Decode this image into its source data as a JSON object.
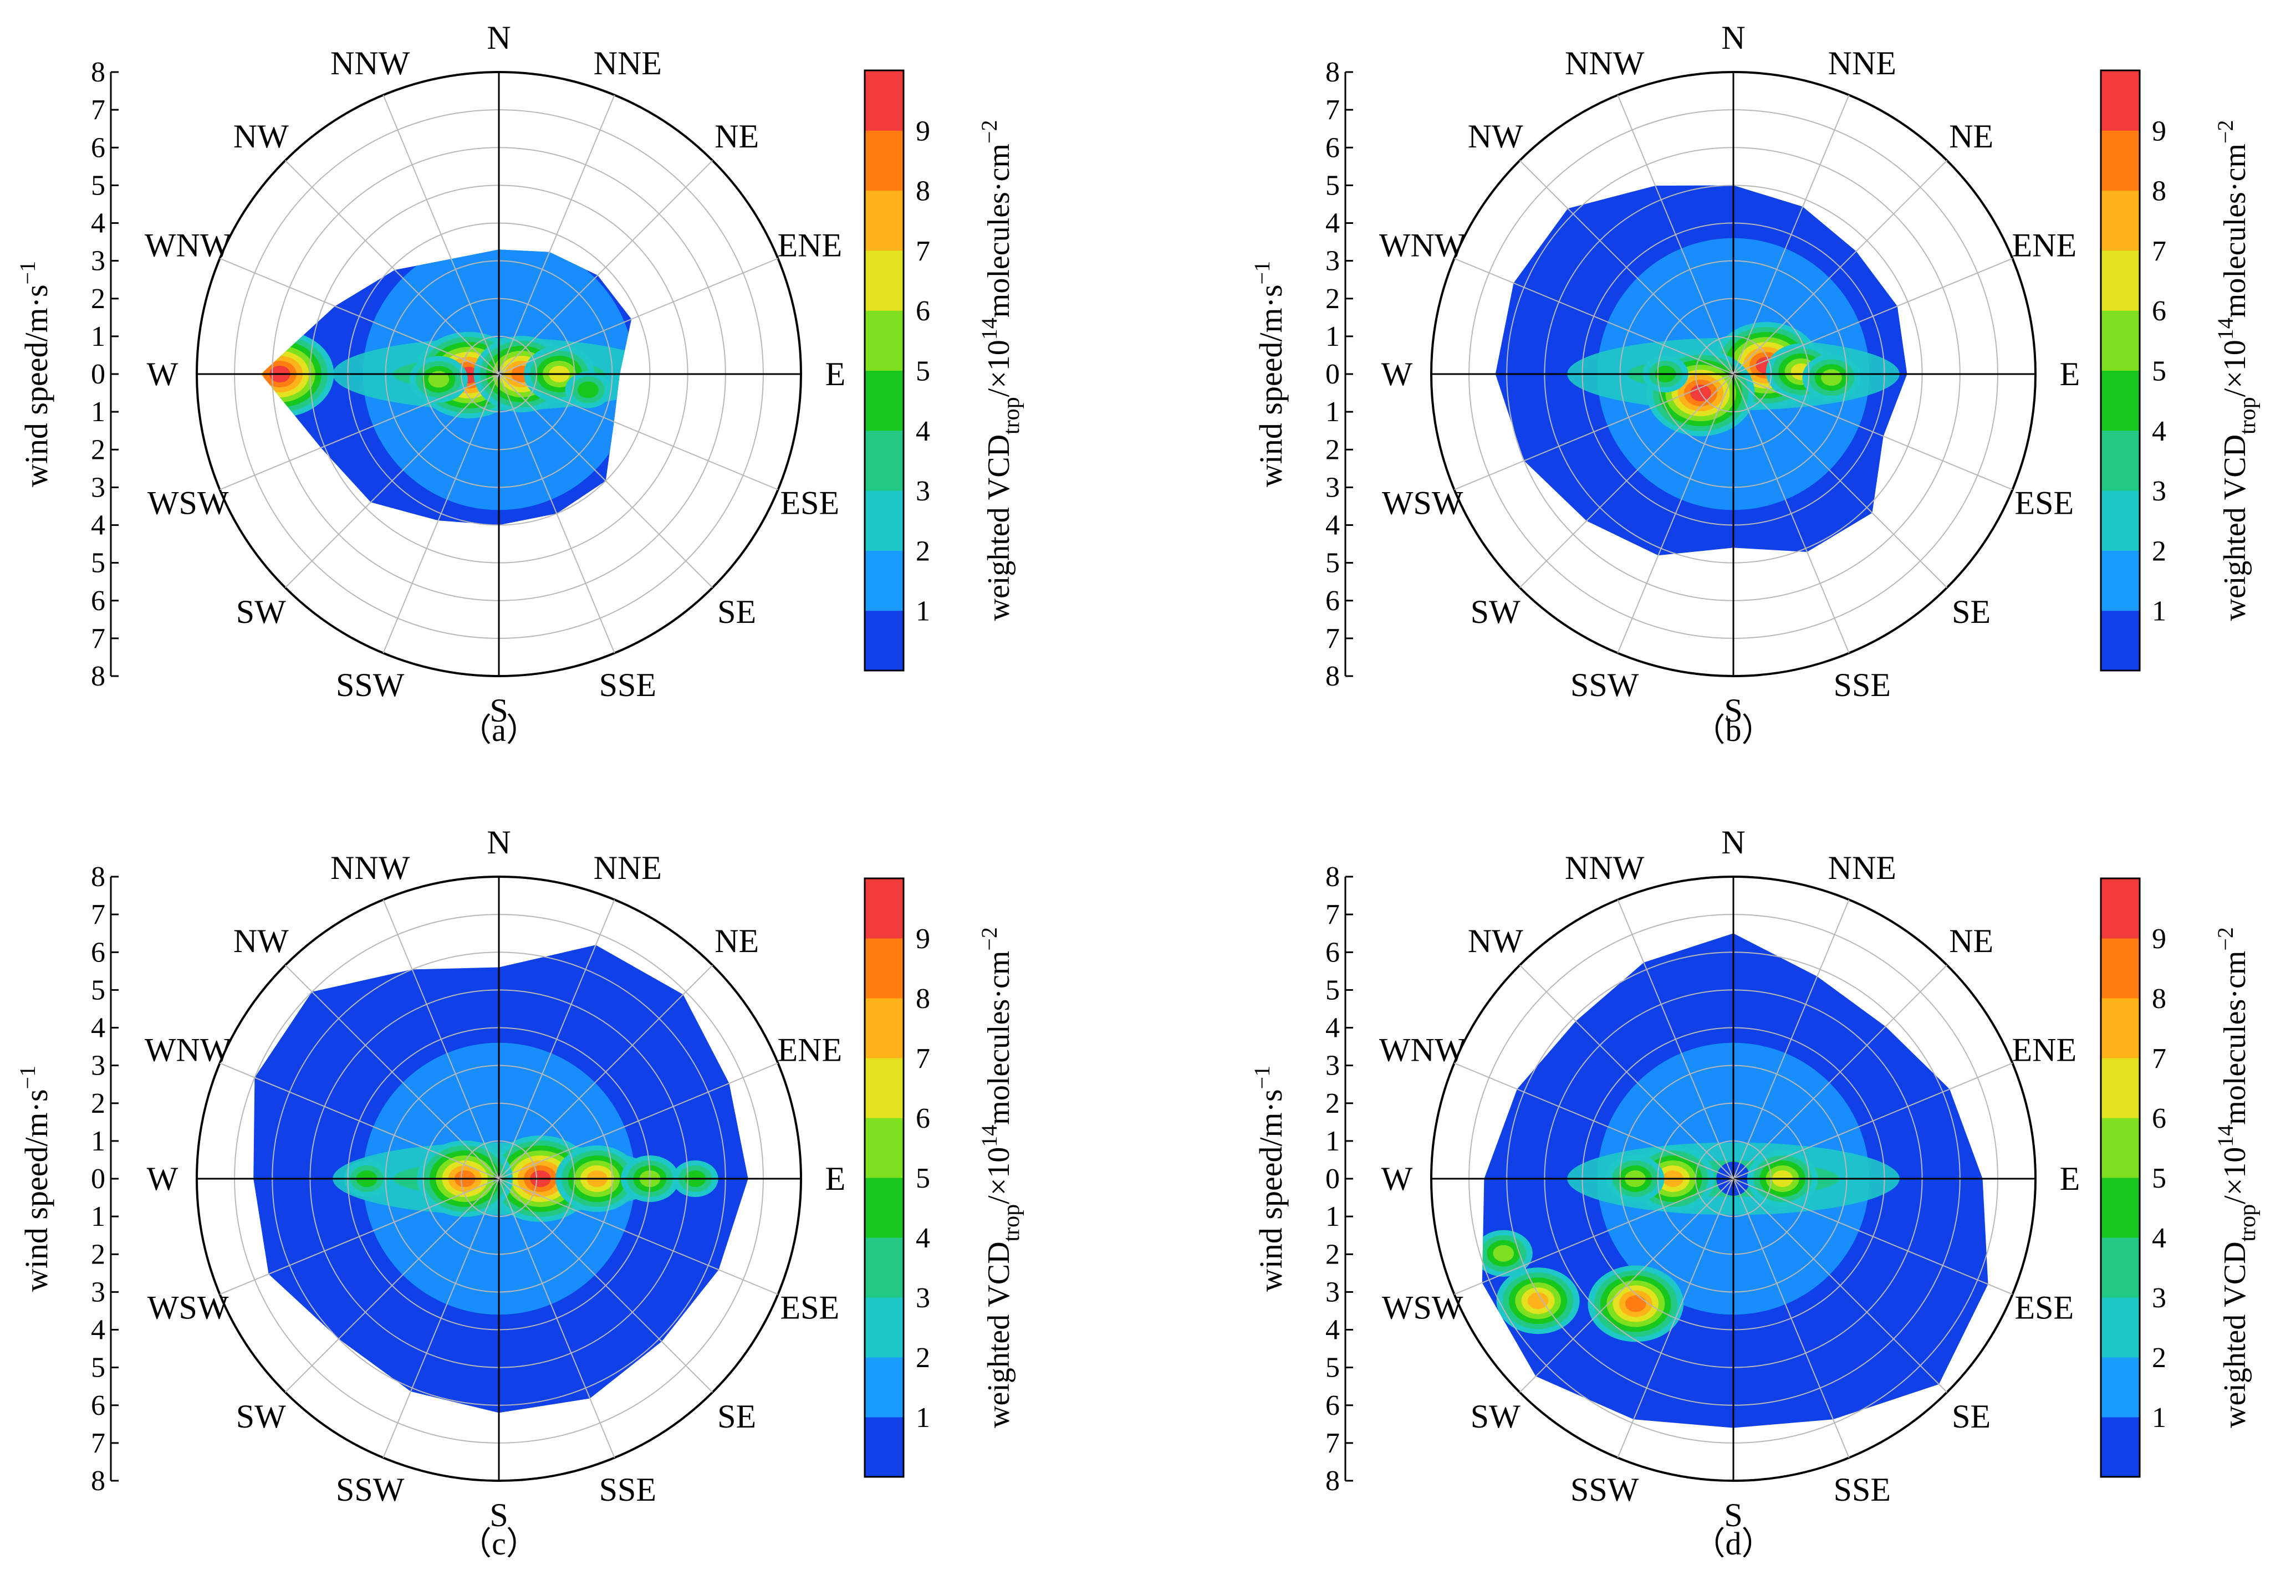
{
  "figure": {
    "panels": [
      {
        "id": "a",
        "caption": "（a）"
      },
      {
        "id": "b",
        "caption": "（b）"
      },
      {
        "id": "c",
        "caption": "（c）"
      },
      {
        "id": "d",
        "caption": "（d）"
      }
    ]
  },
  "colors": {
    "levels": [
      "#1040e8",
      "#1a9cff",
      "#1fc8c8",
      "#22c883",
      "#18c71e",
      "#7fe01f",
      "#e2e21f",
      "#ffb21a",
      "#ff7d12",
      "#f23c3c"
    ],
    "axis": "#000000",
    "grid": "#b8b8b8"
  },
  "chart_data": [
    {
      "type": "polar-contour",
      "panel": "a",
      "caption": "（a）",
      "directions": [
        "N",
        "NNE",
        "NE",
        "ENE",
        "E",
        "ESE",
        "SE",
        "SSE",
        "S",
        "SSW",
        "SW",
        "WSW",
        "W",
        "WNW",
        "NW",
        "NNW"
      ],
      "radial_ticks": [
        "8",
        "7",
        "6",
        "5",
        "4",
        "3",
        "2",
        "1",
        "0",
        "1",
        "2",
        "3",
        "4",
        "5",
        "6",
        "7",
        "8"
      ],
      "ylabel": "wind speed/m·s",
      "ylabel_sup": "−1",
      "rlim": [
        0,
        8
      ],
      "colorbar": {
        "ticks": [
          "1",
          "2",
          "3",
          "4",
          "5",
          "6",
          "7",
          "8",
          "9"
        ],
        "range": [
          0,
          10
        ],
        "label_main": "weighted VCD",
        "label_sub": "trop",
        "label_rest": "/×10",
        "label_exp": "14",
        "label_unit": "molecules·cm",
        "label_unit_exp": "−2"
      },
      "coverage_max_speed": [
        3.3,
        3.5,
        3.7,
        3.8,
        3.2,
        3.3,
        4.0,
        4.0,
        4.0,
        4.2,
        4.8,
        5.1,
        6.3,
        4.7,
        3.9,
        3.3
      ],
      "hotspots": [
        {
          "dir_deg": 270,
          "speed": 5.8,
          "value": 9.5
        },
        {
          "dir_deg": 268,
          "speed": 0.8,
          "value": 9.2
        },
        {
          "dir_deg": 90,
          "speed": 0.6,
          "value": 8.8
        },
        {
          "dir_deg": 90,
          "speed": 1.6,
          "value": 6.2
        },
        {
          "dir_deg": 265,
          "speed": 1.6,
          "value": 5.6
        },
        {
          "dir_deg": 100,
          "speed": 2.4,
          "value": 4.6
        }
      ]
    },
    {
      "type": "polar-contour",
      "panel": "b",
      "caption": "（b）",
      "directions": [
        "N",
        "NNE",
        "NE",
        "ENE",
        "E",
        "ESE",
        "SE",
        "SSE",
        "S",
        "SSW",
        "SW",
        "WSW",
        "W",
        "WNW",
        "NW",
        "NNW"
      ],
      "radial_ticks": [
        "8",
        "7",
        "6",
        "5",
        "4",
        "3",
        "2",
        "1",
        "0",
        "1",
        "2",
        "3",
        "4",
        "5",
        "6",
        "7",
        "8"
      ],
      "ylabel": "wind speed/m·s",
      "ylabel_sup": "−1",
      "rlim": [
        0,
        8
      ],
      "colorbar": {
        "ticks": [
          "1",
          "2",
          "3",
          "4",
          "5",
          "6",
          "7",
          "8",
          "9"
        ],
        "range": [
          0,
          10
        ],
        "label_main": "weighted VCD",
        "label_sub": "trop",
        "label_rest": "/×10",
        "label_exp": "14",
        "label_unit": "molecules·cm",
        "label_unit_exp": "−2"
      },
      "coverage_max_speed": [
        5.0,
        4.8,
        4.6,
        4.7,
        4.6,
        4.3,
        5.2,
        5.1,
        4.6,
        5.2,
        5.5,
        6.0,
        6.3,
        6.3,
        6.2,
        5.4
      ],
      "hotspots": [
        {
          "dir_deg": 75,
          "speed": 0.9,
          "value": 9.3
        },
        {
          "dir_deg": 240,
          "speed": 1.0,
          "value": 9.2
        },
        {
          "dir_deg": 88,
          "speed": 1.8,
          "value": 6.6
        },
        {
          "dir_deg": 92,
          "speed": 2.6,
          "value": 5.2
        },
        {
          "dir_deg": 270,
          "speed": 1.8,
          "value": 4.2
        }
      ]
    },
    {
      "type": "polar-contour",
      "panel": "c",
      "caption": "（c）",
      "directions": [
        "N",
        "NNE",
        "NE",
        "ENE",
        "E",
        "ESE",
        "SE",
        "SSE",
        "S",
        "SSW",
        "SW",
        "WSW",
        "W",
        "WNW",
        "NW",
        "NNW"
      ],
      "radial_ticks": [
        "8",
        "7",
        "6",
        "5",
        "4",
        "3",
        "2",
        "1",
        "0",
        "1",
        "2",
        "3",
        "4",
        "5",
        "6",
        "7",
        "8"
      ],
      "ylabel": "wind speed/m·s",
      "ylabel_sup": "−1",
      "rlim": [
        0,
        8
      ],
      "colorbar": {
        "ticks": [
          "1",
          "2",
          "3",
          "4",
          "5",
          "6",
          "7",
          "8",
          "9"
        ],
        "range": [
          0,
          10
        ],
        "label_main": "weighted VCD",
        "label_sub": "trop",
        "label_rest": "/×10",
        "label_exp": "14",
        "label_unit": "molecules·cm",
        "label_unit_exp": "−2"
      },
      "coverage_max_speed": [
        5.6,
        6.7,
        6.9,
        6.6,
        6.6,
        6.3,
        6.1,
        6.3,
        6.2,
        6.1,
        6.0,
        6.6,
        6.5,
        7.0,
        7.0,
        6.0
      ],
      "hotspots": [
        {
          "dir_deg": 90,
          "speed": 1.1,
          "value": 9.4
        },
        {
          "dir_deg": 270,
          "speed": 0.9,
          "value": 8.6
        },
        {
          "dir_deg": 90,
          "speed": 2.6,
          "value": 7.8
        },
        {
          "dir_deg": 90,
          "speed": 4.0,
          "value": 5.2
        },
        {
          "dir_deg": 270,
          "speed": 3.5,
          "value": 4.8
        },
        {
          "dir_deg": 90,
          "speed": 5.2,
          "value": 4.6
        }
      ]
    },
    {
      "type": "polar-contour",
      "panel": "d",
      "caption": "（d）",
      "directions": [
        "N",
        "NNE",
        "NE",
        "ENE",
        "E",
        "ESE",
        "SE",
        "SSE",
        "S",
        "SSW",
        "SW",
        "WSW",
        "W",
        "WNW",
        "NW",
        "NNW"
      ],
      "radial_ticks": [
        "8",
        "7",
        "6",
        "5",
        "4",
        "3",
        "2",
        "1",
        "0",
        "1",
        "2",
        "3",
        "4",
        "5",
        "6",
        "7",
        "8"
      ],
      "ylabel": "wind speed/m·s",
      "ylabel_sup": "−1",
      "rlim": [
        0,
        8
      ],
      "colorbar": {
        "ticks": [
          "1",
          "2",
          "3",
          "4",
          "5",
          "6",
          "7",
          "8",
          "9"
        ],
        "range": [
          0,
          10
        ],
        "label_main": "weighted VCD",
        "label_sub": "trop",
        "label_rest": "/×10",
        "label_exp": "14",
        "label_unit": "molecules·cm",
        "label_unit_exp": "−2"
      },
      "coverage_max_speed": [
        6.5,
        5.8,
        5.7,
        6.2,
        6.6,
        7.3,
        7.7,
        6.9,
        6.6,
        6.9,
        7.4,
        7.2,
        6.6,
        6.2,
        5.9,
        6.2
      ],
      "hotspots": [
        {
          "dir_deg": 218,
          "speed": 4.2,
          "value": 8.4
        },
        {
          "dir_deg": 238,
          "speed": 6.1,
          "value": 7.8
        },
        {
          "dir_deg": 270,
          "speed": 1.6,
          "value": 7.0
        },
        {
          "dir_deg": 90,
          "speed": 1.3,
          "value": 6.6
        },
        {
          "dir_deg": 252,
          "speed": 6.4,
          "value": 5.6
        },
        {
          "dir_deg": 270,
          "speed": 2.6,
          "value": 5.0
        }
      ]
    }
  ]
}
